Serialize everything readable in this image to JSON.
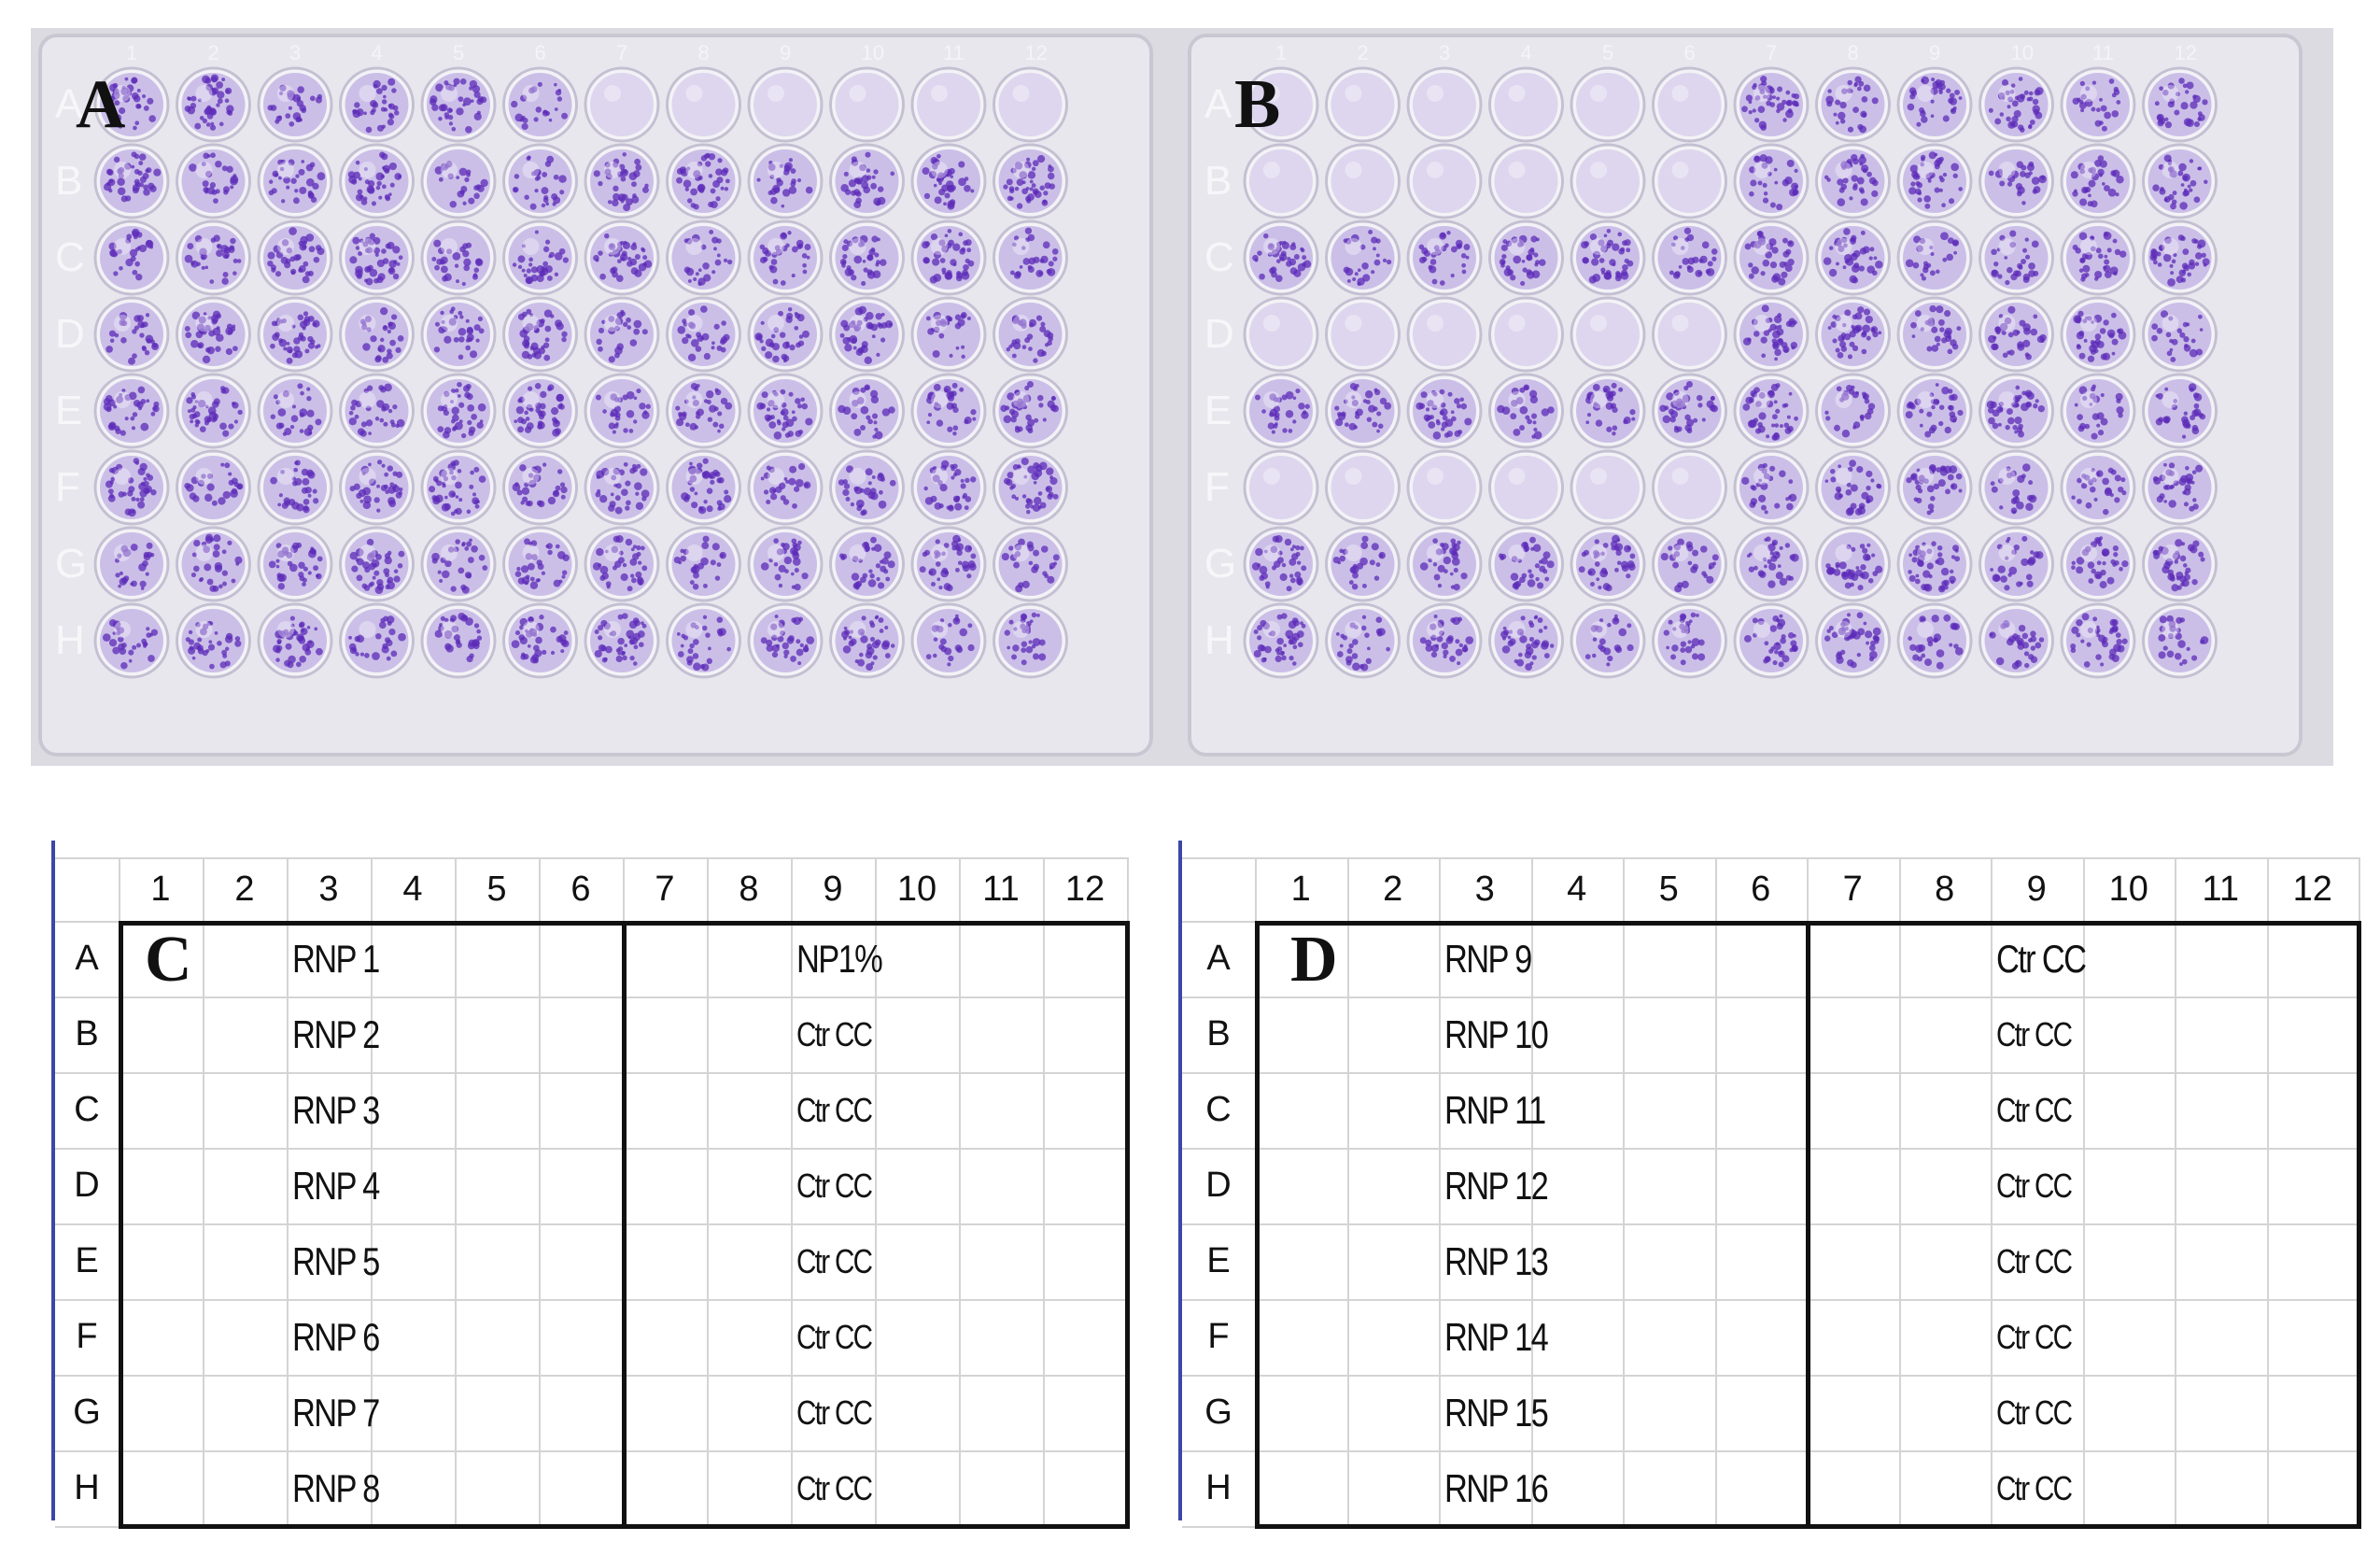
{
  "figure": {
    "panel_a": {
      "letter": "A",
      "row_labels": [
        "A",
        "B",
        "C",
        "D",
        "E",
        "F",
        "G",
        "H"
      ],
      "column_labels": [
        "1",
        "2",
        "3",
        "4",
        "5",
        "6",
        "7",
        "8",
        "9",
        "10",
        "11",
        "12"
      ],
      "plate_color": "#e9e7ee",
      "stain_color": "#5c2bb8"
    },
    "panel_b": {
      "letter": "B",
      "row_labels": [
        "A",
        "B",
        "C",
        "D",
        "E",
        "F",
        "G",
        "H"
      ],
      "column_labels": [
        "1",
        "2",
        "3",
        "4",
        "5",
        "6",
        "7",
        "8",
        "9",
        "10",
        "11",
        "12"
      ],
      "plate_color": "#e9e7ee",
      "stain_color": "#5c2bb8"
    },
    "panel_c": {
      "letter": "C",
      "columns": [
        "1",
        "2",
        "3",
        "4",
        "5",
        "6",
        "7",
        "8",
        "9",
        "10",
        "11",
        "12"
      ],
      "rows": [
        "A",
        "B",
        "C",
        "D",
        "E",
        "F",
        "G",
        "H"
      ],
      "left_labels": [
        "RNP 1",
        "RNP 2",
        "RNP 3",
        "RNP 4",
        "RNP 5",
        "RNP 6",
        "RNP 7",
        "RNP 8"
      ],
      "right_labels": [
        "NP1%",
        "Ctr CC",
        "Ctr CC",
        "Ctr CC",
        "Ctr CC",
        "Ctr CC",
        "Ctr CC",
        "Ctr CC"
      ]
    },
    "panel_d": {
      "letter": "D",
      "columns": [
        "1",
        "2",
        "3",
        "4",
        "5",
        "6",
        "7",
        "8",
        "9",
        "10",
        "11",
        "12"
      ],
      "rows": [
        "A",
        "B",
        "C",
        "D",
        "E",
        "F",
        "G",
        "H"
      ],
      "left_labels": [
        "RNP 9",
        "RNP 10",
        "RNP 11",
        "RNP 12",
        "RNP 13",
        "RNP 14",
        "RNP 15",
        "RNP 16"
      ],
      "right_labels": [
        "Ctr CC",
        "Ctr CC",
        "Ctr CC",
        "Ctr CC",
        "Ctr CC",
        "Ctr CC",
        "Ctr CC",
        "Ctr CC"
      ]
    }
  }
}
